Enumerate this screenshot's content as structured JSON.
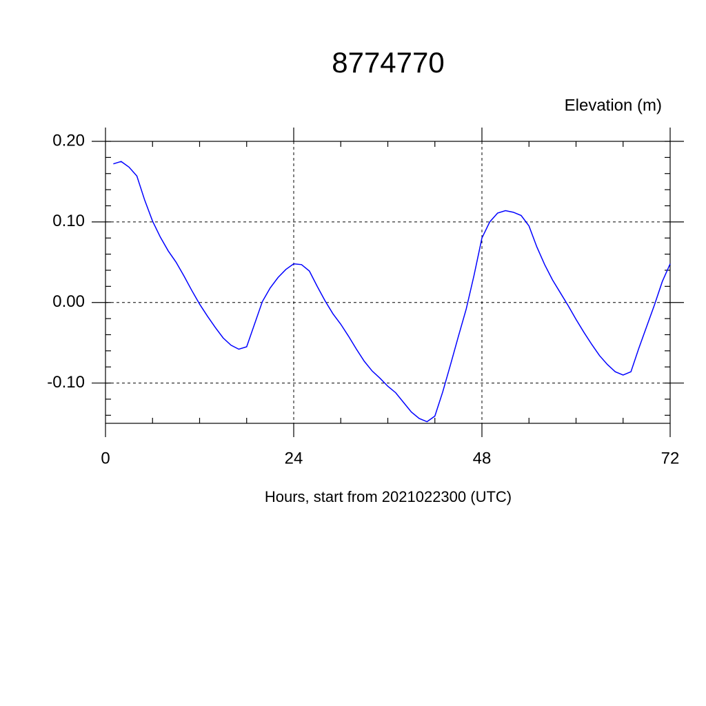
{
  "chart_data": {
    "type": "line",
    "title": "8774770",
    "subtitle": "Elevation (m)",
    "x_label": "Hours, start from 2021022300 (UTC)",
    "x": [
      1,
      2,
      3,
      4,
      5,
      6,
      7,
      8,
      9,
      10,
      11,
      12,
      13,
      14,
      15,
      16,
      17,
      18,
      19,
      20,
      21,
      22,
      23,
      24,
      25,
      26,
      27,
      28,
      29,
      30,
      31,
      32,
      33,
      34,
      35,
      36,
      37,
      38,
      39,
      40,
      41,
      42,
      43,
      44,
      45,
      46,
      47,
      48,
      49,
      50,
      51,
      52,
      53,
      54,
      55,
      56,
      57,
      58,
      59,
      60,
      61,
      62,
      63,
      64,
      65,
      66,
      67,
      68,
      69,
      70,
      71,
      72
    ],
    "series": [
      {
        "name": "Elevation",
        "color": "#0000ff",
        "values": [
          0.172,
          0.175,
          0.168,
          0.157,
          0.127,
          0.101,
          0.081,
          0.064,
          0.05,
          0.033,
          0.015,
          -0.002,
          -0.017,
          -0.031,
          -0.044,
          -0.053,
          -0.058,
          -0.055,
          -0.027,
          0.001,
          0.018,
          0.031,
          0.041,
          0.048,
          0.047,
          0.039,
          0.02,
          0.002,
          -0.014,
          -0.027,
          -0.042,
          -0.058,
          -0.073,
          -0.085,
          -0.094,
          -0.104,
          -0.112,
          -0.124,
          -0.136,
          -0.144,
          -0.148,
          -0.141,
          -0.111,
          -0.077,
          -0.042,
          -0.008,
          0.034,
          0.08,
          0.1,
          0.111,
          0.114,
          0.112,
          0.108,
          0.095,
          0.069,
          0.047,
          0.028,
          0.012,
          -0.004,
          -0.021,
          -0.037,
          -0.052,
          -0.066,
          -0.077,
          -0.086,
          -0.09,
          -0.086,
          -0.057,
          -0.03,
          -0.003,
          0.026,
          0.048
        ]
      }
    ],
    "xlim": [
      0,
      72
    ],
    "xticks": [
      0,
      24,
      48,
      72
    ],
    "ylim": [
      -0.15,
      0.2
    ],
    "yticks": [
      {
        "value": -0.1,
        "label": "-0.10"
      },
      {
        "value": 0,
        "label": "0.00"
      },
      {
        "value": 0.1,
        "label": "0.10"
      },
      {
        "value": 0.2,
        "label": "0.20"
      }
    ],
    "grid": true
  }
}
